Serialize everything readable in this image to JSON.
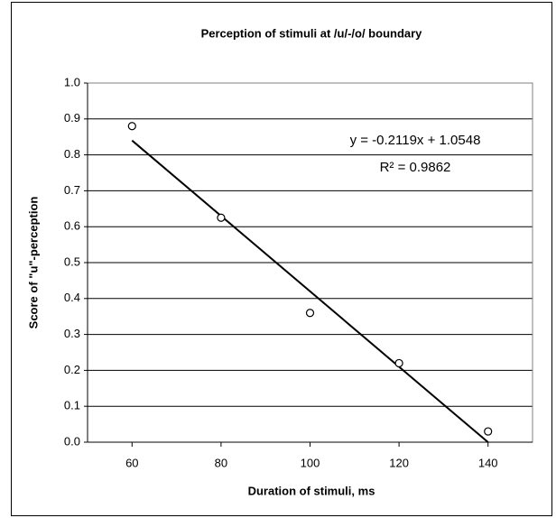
{
  "chart_data": {
    "type": "scatter",
    "title": "Perception of stimuli at /u/-/o/ boundary",
    "x_label": "Duration of stimuli, ms",
    "y_label": "Score of \"u\"-perception",
    "series": [
      {
        "name": "Score",
        "color": "#000000",
        "x": [
          60,
          80,
          100,
          120,
          140
        ],
        "values": [
          0.88,
          0.625,
          0.36,
          0.22,
          0.03
        ]
      }
    ],
    "trendline": {
      "x": [
        60,
        140
      ],
      "values": [
        0.84,
        0.0
      ],
      "color": "#000000"
    },
    "annotations": [
      "y = -0.2119x + 1.0548",
      "R² = 0.9862"
    ],
    "xlim": [
      50,
      150
    ],
    "xticks": [
      60,
      80,
      100,
      120,
      140
    ],
    "ylim": [
      0,
      1
    ],
    "yticks": [
      {
        "value": 0,
        "label": "0.0"
      },
      {
        "value": 0.1,
        "label": "0.1"
      },
      {
        "value": 0.2,
        "label": "0.2"
      },
      {
        "value": 0.3,
        "label": "0.3"
      },
      {
        "value": 0.4,
        "label": "0.4"
      },
      {
        "value": 0.5,
        "label": "0.5"
      },
      {
        "value": 0.6,
        "label": "0.6"
      },
      {
        "value": 0.7,
        "label": "0.7"
      },
      {
        "value": 0.8,
        "label": "0.8"
      },
      {
        "value": 0.9,
        "label": "0.9"
      },
      {
        "value": 1,
        "label": "1.0"
      }
    ],
    "grid": true
  }
}
